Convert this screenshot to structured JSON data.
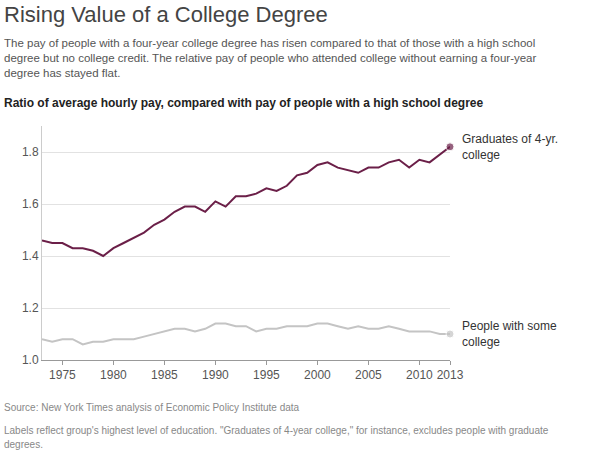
{
  "chart_data": {
    "type": "line",
    "title": "Rising Value of a College Degree",
    "subtitle": "The pay of people with a four-year college degree has risen compared to that of those with a high school degree but no college credit. The relative pay of people who attended college without earning a four-year degree has stayed flat.",
    "ylabel": "Ratio of average hourly pay, compared with pay of people with a high school degree",
    "source": "Source: New York Times analysis of Economic Policy Institute data",
    "note": "Labels reflect group's highest level of education. \"Graduates of 4-year college,\" for instance, excludes people with graduate degrees.",
    "x": [
      1973,
      1974,
      1975,
      1976,
      1977,
      1978,
      1979,
      1980,
      1981,
      1982,
      1983,
      1984,
      1985,
      1986,
      1987,
      1988,
      1989,
      1990,
      1991,
      1992,
      1993,
      1994,
      1995,
      1996,
      1997,
      1998,
      1999,
      2000,
      2001,
      2002,
      2003,
      2004,
      2005,
      2006,
      2007,
      2008,
      2009,
      2010,
      2011,
      2012,
      2013
    ],
    "series": [
      {
        "name": "Graduates of 4-yr. college",
        "color": "#6b1f48",
        "marker": "last",
        "values": [
          1.46,
          1.45,
          1.45,
          1.43,
          1.43,
          1.42,
          1.4,
          1.43,
          1.45,
          1.47,
          1.49,
          1.52,
          1.54,
          1.57,
          1.59,
          1.59,
          1.57,
          1.61,
          1.59,
          1.63,
          1.63,
          1.64,
          1.66,
          1.65,
          1.67,
          1.71,
          1.72,
          1.75,
          1.76,
          1.74,
          1.73,
          1.72,
          1.74,
          1.74,
          1.76,
          1.77,
          1.74,
          1.77,
          1.76,
          1.79,
          1.82
        ]
      },
      {
        "name": "People with some college",
        "color": "#c4c4c4",
        "marker": "last",
        "values": [
          1.08,
          1.07,
          1.08,
          1.08,
          1.06,
          1.07,
          1.07,
          1.08,
          1.08,
          1.08,
          1.09,
          1.1,
          1.11,
          1.12,
          1.12,
          1.11,
          1.12,
          1.14,
          1.14,
          1.13,
          1.13,
          1.11,
          1.12,
          1.12,
          1.13,
          1.13,
          1.13,
          1.14,
          1.14,
          1.13,
          1.12,
          1.13,
          1.12,
          1.12,
          1.13,
          1.12,
          1.11,
          1.11,
          1.11,
          1.1,
          1.1
        ]
      }
    ],
    "xlim": [
      1973,
      2013
    ],
    "xticks": [
      1975,
      1980,
      1985,
      1990,
      1995,
      2000,
      2005,
      2010,
      2013
    ],
    "ylim": [
      1.0,
      1.9
    ],
    "yticks": [
      {
        "value": 1.0,
        "label": "1.0"
      },
      1.2,
      1.4,
      1.6,
      1.8
    ],
    "grid": "y"
  }
}
